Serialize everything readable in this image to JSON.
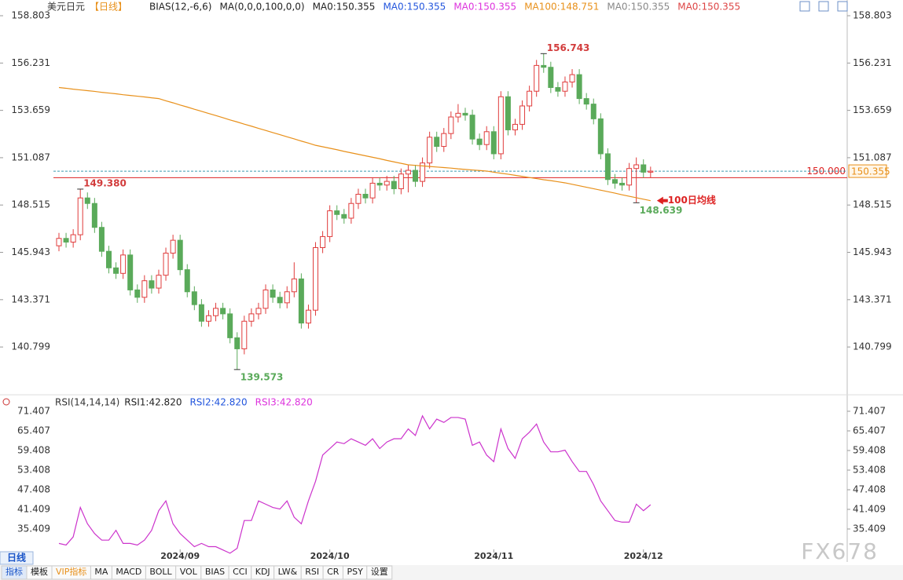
{
  "chart_data": [
    {
      "type": "candlestick",
      "title": "美元日元",
      "subtitle": "【日线】",
      "legend": [
        {
          "text": "BIAS(12,-6,6)",
          "color": "#222222"
        },
        {
          "text": "MA(0,0,0,100,0,0)",
          "color": "#222222"
        },
        {
          "text": "MA0:150.355",
          "color": "#222222"
        },
        {
          "text": "MA0:150.355",
          "color": "#2255dd"
        },
        {
          "text": "MA0:150.355",
          "color": "#dd33dd"
        },
        {
          "text": "MA100:148.751",
          "color": "#e8901a"
        },
        {
          "text": "MA0:150.355",
          "color": "#888888"
        },
        {
          "text": "MA0:150.355",
          "color": "#dd4444"
        }
      ],
      "up_color": "#e03c3c",
      "down_color": "#5aaa5a",
      "open": [
        146.3,
        146.7,
        146.5,
        146.9,
        148.9,
        148.6,
        147.3,
        146.0,
        145.1,
        144.8,
        145.8,
        143.9,
        143.5,
        144.4,
        144.0,
        144.7,
        145.9,
        146.6,
        145.0,
        143.8,
        143.1,
        142.2,
        142.5,
        142.9,
        142.6,
        141.3,
        140.7,
        142.2,
        142.6,
        142.9,
        143.9,
        143.5,
        143.2,
        143.8,
        144.5,
        142.1,
        142.8,
        146.2,
        146.8,
        148.2,
        148.0,
        147.8,
        148.6,
        149.1,
        148.9,
        149.7,
        149.6,
        149.8,
        149.4,
        150.2,
        150.4,
        149.8,
        150.8,
        152.2,
        151.7,
        152.4,
        153.3,
        153.5,
        153.4,
        152.1,
        151.8,
        152.5,
        151.3,
        154.4,
        152.6,
        152.9,
        153.9,
        154.7,
        156.1,
        156.0,
        154.9,
        154.7,
        155.2,
        155.6,
        154.3,
        154.0,
        153.2,
        151.3,
        149.9,
        149.7,
        149.6,
        150.5,
        150.7,
        150.3
      ],
      "high": [
        147.0,
        147.0,
        147.2,
        149.38,
        149.2,
        148.9,
        147.6,
        146.3,
        145.4,
        146.1,
        146.1,
        144.2,
        144.7,
        144.7,
        145.0,
        146.2,
        146.9,
        146.9,
        145.3,
        144.1,
        143.4,
        142.8,
        143.2,
        143.2,
        142.9,
        141.6,
        142.5,
        142.9,
        143.2,
        144.2,
        144.2,
        143.8,
        144.1,
        145.4,
        144.8,
        143.1,
        146.5,
        147.1,
        148.5,
        148.5,
        148.3,
        148.9,
        149.4,
        149.4,
        150.0,
        150.0,
        150.1,
        150.1,
        150.5,
        150.7,
        150.7,
        151.1,
        152.5,
        152.5,
        152.7,
        153.6,
        154.0,
        153.8,
        153.7,
        152.4,
        152.8,
        152.8,
        154.7,
        154.7,
        153.2,
        154.2,
        155.0,
        156.4,
        156.743,
        156.3,
        155.2,
        155.5,
        155.9,
        155.9,
        154.6,
        154.3,
        153.5,
        151.6,
        150.2,
        150.0,
        150.8,
        151.1,
        151.0,
        150.6
      ],
      "low": [
        146.0,
        146.2,
        146.2,
        146.6,
        148.3,
        147.0,
        145.7,
        144.8,
        144.5,
        144.5,
        143.6,
        143.2,
        143.2,
        143.7,
        143.7,
        144.4,
        145.6,
        144.7,
        143.5,
        142.8,
        141.9,
        141.9,
        142.2,
        142.3,
        141.0,
        139.573,
        140.4,
        141.9,
        142.3,
        142.6,
        143.2,
        142.9,
        142.9,
        143.5,
        141.8,
        141.8,
        142.5,
        145.9,
        146.5,
        147.7,
        147.5,
        147.5,
        148.3,
        148.6,
        148.6,
        149.3,
        149.3,
        149.1,
        149.1,
        149.2,
        149.5,
        149.5,
        150.5,
        151.4,
        151.4,
        152.1,
        153.0,
        153.1,
        151.8,
        151.5,
        151.5,
        151.0,
        151.0,
        152.3,
        152.3,
        152.6,
        153.6,
        154.4,
        155.7,
        154.6,
        154.4,
        154.4,
        154.9,
        154.0,
        153.7,
        152.9,
        151.0,
        149.6,
        149.4,
        149.3,
        149.3,
        148.639,
        150.0,
        150.0
      ],
      "close": [
        146.7,
        146.5,
        146.9,
        148.9,
        148.6,
        147.3,
        146.0,
        145.1,
        144.8,
        145.8,
        143.9,
        143.5,
        144.4,
        144.0,
        144.7,
        145.9,
        146.6,
        145.0,
        143.8,
        143.1,
        142.2,
        142.5,
        142.9,
        142.6,
        141.3,
        140.7,
        142.2,
        142.6,
        142.9,
        143.9,
        143.5,
        143.2,
        143.8,
        144.5,
        142.1,
        142.8,
        146.2,
        146.8,
        148.2,
        148.0,
        147.8,
        148.6,
        149.1,
        148.9,
        149.7,
        149.6,
        149.8,
        149.4,
        150.2,
        150.4,
        149.8,
        150.8,
        152.2,
        151.7,
        152.4,
        153.3,
        153.5,
        153.4,
        152.1,
        151.8,
        152.5,
        151.3,
        154.4,
        152.6,
        152.9,
        153.9,
        154.7,
        156.1,
        156.0,
        154.9,
        154.7,
        155.2,
        155.6,
        154.3,
        154.0,
        153.2,
        151.3,
        149.9,
        149.7,
        149.6,
        150.5,
        150.7,
        150.3,
        150.355
      ],
      "ma100": {
        "color": "#e8901a",
        "values": [
          154.9,
          154.86,
          154.81,
          154.77,
          154.73,
          154.69,
          154.64,
          154.6,
          154.56,
          154.51,
          154.47,
          154.43,
          154.39,
          154.34,
          154.3,
          154.18,
          154.07,
          153.95,
          153.84,
          153.72,
          153.61,
          153.49,
          153.38,
          153.26,
          153.14,
          153.03,
          152.91,
          152.8,
          152.68,
          152.57,
          152.45,
          152.34,
          152.22,
          152.11,
          151.99,
          151.88,
          151.76,
          151.68,
          151.6,
          151.52,
          151.43,
          151.35,
          151.27,
          151.19,
          151.11,
          151.03,
          150.94,
          150.86,
          150.78,
          150.7,
          150.67,
          150.64,
          150.61,
          150.58,
          150.55,
          150.52,
          150.48,
          150.45,
          150.42,
          150.39,
          150.36,
          150.3,
          150.24,
          150.19,
          150.13,
          150.07,
          150.01,
          149.95,
          149.89,
          149.84,
          149.78,
          149.72,
          149.64,
          149.56,
          149.48,
          149.4,
          149.32,
          149.24,
          149.16,
          149.07,
          148.99,
          148.91,
          148.83,
          148.751
        ]
      },
      "ylim": [
        138.33,
        159.06
      ],
      "yticks": [
        158.803,
        156.231,
        153.659,
        151.087,
        148.515,
        145.943,
        143.371,
        140.799
      ],
      "xticks": [
        {
          "value": 17,
          "label": "2024/09"
        },
        {
          "value": 38,
          "label": "2024/10"
        },
        {
          "value": 61,
          "label": "2024/11"
        },
        {
          "value": 82,
          "label": "2024/12"
        }
      ],
      "reference_line": {
        "value": 150,
        "label": "150.000",
        "color": "#dd2222"
      },
      "last_price": 150.355,
      "high_labels": [
        {
          "value": 156.743,
          "label": "156.743"
        },
        {
          "value": 149.38,
          "label": "149.380"
        }
      ],
      "low_labels": [
        139.573,
        148.639
      ],
      "ma_note": "100日均线"
    },
    {
      "type": "line",
      "title": "RSI(14,14,14)",
      "legend": [
        {
          "text": "RSI1:42.820",
          "color": "#222222"
        },
        {
          "text": "RSI2:42.820",
          "color": "#2255dd"
        },
        {
          "text": "RSI3:42.820",
          "color": "#dd33dd"
        }
      ],
      "series": [
        {
          "name": "RSI1",
          "color": "#cc33cc",
          "values": [
            31,
            30.5,
            33,
            42,
            37,
            34,
            32,
            32,
            35,
            31,
            31,
            30.5,
            32,
            35,
            41,
            44,
            37,
            34,
            32,
            30,
            31,
            30,
            30,
            29,
            28,
            29.5,
            38,
            38,
            44,
            43,
            42,
            41.5,
            44,
            39,
            37,
            44,
            50,
            58,
            60,
            62,
            61.5,
            63,
            62,
            61,
            63,
            60,
            62,
            63,
            63,
            66,
            64,
            70,
            66,
            69,
            68,
            69.5,
            69.5,
            69,
            61,
            62,
            58,
            56,
            66,
            60,
            57,
            63,
            65,
            67.5,
            62,
            59,
            59,
            59.5,
            56,
            53,
            53,
            49,
            44,
            41,
            38,
            37.5,
            37.5,
            43,
            41,
            42.82
          ]
        }
      ],
      "ylim": [
        29.169,
        74.287
      ],
      "yticks": [
        71.407,
        65.407,
        59.408,
        53.408,
        47.408,
        41.409,
        35.409
      ]
    }
  ],
  "toolbar": {
    "period": "日线",
    "tabs": [
      "指标",
      "模板",
      "VIP指标",
      "MA",
      "MACD",
      "BOLL",
      "VOL",
      "BIAS",
      "CCI",
      "KDJ",
      "LW&",
      "RSI",
      "CR",
      "PSY",
      "设置"
    ]
  },
  "watermark": "FX678"
}
